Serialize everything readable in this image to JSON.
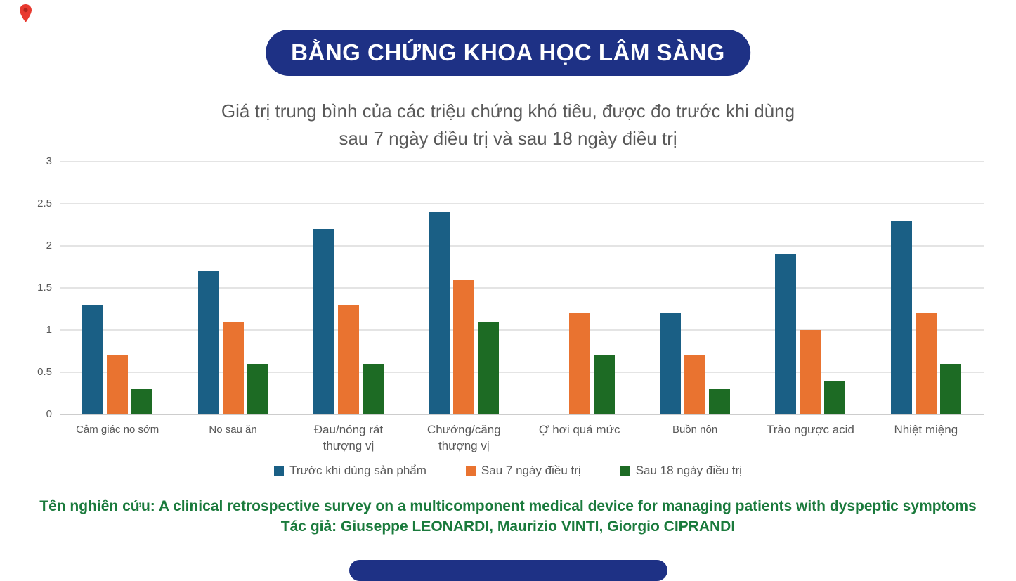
{
  "badge": {
    "label": "BẰNG CHỨNG KHOA HỌC LÂM SÀNG",
    "background": "#1E3185",
    "text_color": "#FFFFFF"
  },
  "title": {
    "line1": "Giá trị trung bình của các triệu chứng khó tiêu, được đo trước khi dùng",
    "line2": "sau 7 ngày điều trị và sau 18 ngày điều trị",
    "color": "#595959"
  },
  "chart_data": {
    "type": "bar",
    "title": "Giá trị trung bình của các triệu chứng khó tiêu, được đo trước khi dùng sau 7 ngày điều trị và sau 18 ngày điều trị",
    "categories": [
      "Cảm giác no sớm",
      "No sau ăn",
      "Đau/nóng rát thượng vị",
      "Chướng/căng thượng vị",
      "Ợ hơi quá mức",
      "Buồn nôn",
      "Trào ngược acid",
      "Nhiệt miệng"
    ],
    "category_lines": [
      [
        "Cảm giác no sớm"
      ],
      [
        "No sau ăn"
      ],
      [
        "Đau/nóng rát",
        "thượng vị"
      ],
      [
        "Chướng/căng",
        "thượng vị"
      ],
      [
        "Ợ hơi quá mức"
      ],
      [
        "Buồn nôn"
      ],
      [
        "Trào ngược acid"
      ],
      [
        "Nhiệt miệng"
      ]
    ],
    "category_large": [
      false,
      false,
      true,
      true,
      true,
      false,
      true,
      true
    ],
    "series": [
      {
        "name": "Trước khi dùng sản phẩm",
        "color": "#1A5F85",
        "values": [
          1.3,
          1.7,
          2.2,
          2.4,
          null,
          1.2,
          1.9,
          2.3
        ]
      },
      {
        "name": "Sau 7 ngày điều trị",
        "color": "#E97330",
        "values": [
          0.7,
          1.1,
          1.3,
          1.6,
          1.2,
          0.7,
          1.0,
          1.2
        ]
      },
      {
        "name": "Sau 18 ngày điều trị",
        "color": "#1D6B24",
        "values": [
          0.3,
          0.6,
          0.6,
          1.1,
          0.7,
          0.3,
          0.4,
          0.6
        ]
      }
    ],
    "ylim": [
      0,
      3
    ],
    "ytick_values": [
      0,
      0.5,
      1,
      1.5,
      2,
      2.5,
      3
    ],
    "ytick_labels": [
      "0",
      "0.5",
      "1",
      "1.5",
      "2",
      "2.5",
      "3"
    ],
    "grid": true,
    "legend_position": "bottom"
  },
  "footer": {
    "line1": "Tên nghiên cứu: A clinical retrospective survey on a multicomponent medical device for managing patients with dyspeptic symptoms",
    "line2": "Tác giả: Giuseppe LEONARDI, Maurizio VINTI, Giorgio CIPRANDI",
    "color": "#1A7A3C"
  },
  "decor": {
    "pin_color": "#E8392F",
    "bottom_bar_color": "#1E3185"
  }
}
